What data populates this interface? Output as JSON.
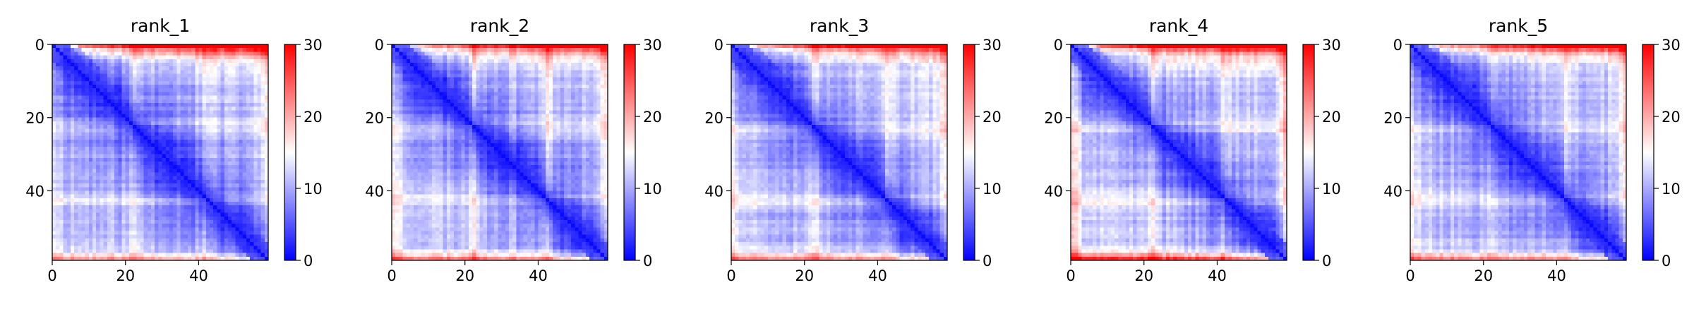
{
  "chart_data": {
    "type": "heatmap",
    "matrix_size": 59,
    "panels": [
      {
        "title": "rank_1",
        "seed": 11,
        "edge_red_top": 1.0,
        "edge_red_bottom": 0.65,
        "edge_red_left": 0.35,
        "band_rows": [
          22,
          42
        ],
        "band_strength": 0.55
      },
      {
        "title": "rank_2",
        "seed": 23,
        "edge_red_top": 0.8,
        "edge_red_bottom": 0.7,
        "edge_red_left": 0.55,
        "band_rows": [
          22,
          42
        ],
        "band_strength": 0.7
      },
      {
        "title": "rank_3",
        "seed": 37,
        "edge_red_top": 0.85,
        "edge_red_bottom": 0.7,
        "edge_red_left": 0.55,
        "band_rows": [
          22,
          42
        ],
        "band_strength": 0.7
      },
      {
        "title": "rank_4",
        "seed": 41,
        "edge_red_top": 0.95,
        "edge_red_bottom": 0.95,
        "edge_red_left": 0.75,
        "band_rows": [
          22,
          42
        ],
        "band_strength": 0.75
      },
      {
        "title": "rank_5",
        "seed": 53,
        "edge_red_top": 0.8,
        "edge_red_bottom": 0.75,
        "edge_red_left": 0.55,
        "band_rows": [
          22,
          42
        ],
        "band_strength": 0.65
      }
    ],
    "x_ticks": [
      "0",
      "20",
      "40"
    ],
    "y_ticks": [
      "0",
      "20",
      "40"
    ],
    "tick_values": [
      0,
      20,
      40
    ],
    "colorbar": {
      "vmin": 0,
      "vmax": 30,
      "ticks": [
        "0",
        "10",
        "20",
        "30"
      ],
      "tick_values": [
        0,
        10,
        20,
        30
      ],
      "colormap": "bwr",
      "colors": {
        "low": "#0000ff",
        "mid": "#ffffff",
        "high": "#ff0000"
      }
    },
    "xlabel": "",
    "ylabel": ""
  }
}
